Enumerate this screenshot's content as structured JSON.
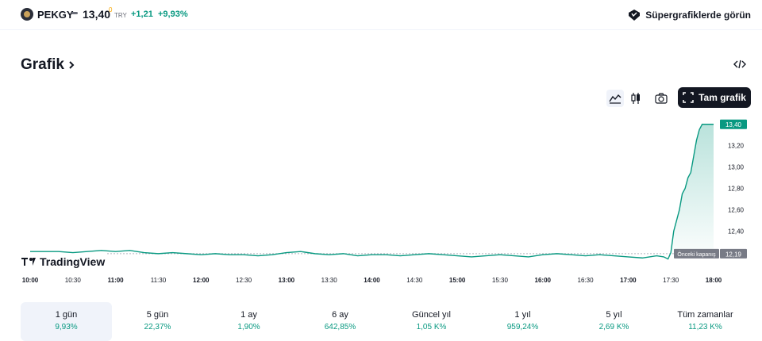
{
  "header": {
    "symbol": "PEKGY",
    "price": "13,40",
    "price_superscript": "0",
    "currency": "TRY",
    "change_abs": "+1,21",
    "change_pct": "+9,93%",
    "super_charts_label": "Süpergrafiklerde görün"
  },
  "section": {
    "title": "Grafik"
  },
  "toolbar": {
    "full_chart_label": "Tam grafik"
  },
  "colors": {
    "up": "#089981",
    "text": "#131722",
    "muted": "#6a6d78",
    "accent": "#f7a600"
  },
  "watermark": "TradingView",
  "chart_data": {
    "type": "area",
    "x_ticks": [
      "10:00",
      "10:30",
      "11:00",
      "11:30",
      "12:00",
      "12:30",
      "13:00",
      "13:30",
      "14:00",
      "14:30",
      "15:00",
      "15:30",
      "16:00",
      "16:30",
      "17:00",
      "17:30",
      "18:00"
    ],
    "y_ticks": [
      "13,40",
      "13,20",
      "13,00",
      "12,80",
      "12,60",
      "12,40",
      "12,19"
    ],
    "ylim": [
      12.1,
      13.45
    ],
    "previous_close": 12.19,
    "previous_close_label": "Önceki kapanış",
    "last_price_label": "13,40",
    "series": [
      {
        "x": [
          "10:00",
          "10:10",
          "10:20",
          "10:30",
          "10:40",
          "10:50",
          "11:00",
          "11:10",
          "11:20",
          "11:30",
          "11:40",
          "11:50",
          "12:00",
          "12:10",
          "12:20",
          "12:30",
          "12:40",
          "12:50",
          "13:00",
          "13:10",
          "13:20",
          "13:30",
          "13:40",
          "13:50",
          "14:00",
          "14:10",
          "14:20",
          "14:30",
          "14:40",
          "14:50",
          "15:00",
          "15:10",
          "15:20",
          "15:30",
          "15:40",
          "15:50",
          "16:00",
          "16:10",
          "16:20",
          "16:30",
          "16:40",
          "16:50",
          "17:00",
          "17:10",
          "17:20",
          "17:25",
          "17:28",
          "17:30",
          "17:32",
          "17:34",
          "17:36",
          "17:38",
          "17:40",
          "17:42",
          "17:44",
          "17:46",
          "17:48",
          "17:50",
          "17:52",
          "17:55",
          "18:00"
        ],
        "values": [
          12.21,
          12.21,
          12.21,
          12.2,
          12.21,
          12.22,
          12.21,
          12.22,
          12.2,
          12.19,
          12.2,
          12.19,
          12.18,
          12.19,
          12.18,
          12.18,
          12.17,
          12.18,
          12.2,
          12.21,
          12.19,
          12.18,
          12.19,
          12.17,
          12.18,
          12.18,
          12.17,
          12.18,
          12.19,
          12.18,
          12.17,
          12.16,
          12.17,
          12.18,
          12.17,
          12.16,
          12.18,
          12.19,
          12.18,
          12.17,
          12.18,
          12.17,
          12.16,
          12.15,
          12.17,
          12.16,
          12.14,
          12.2,
          12.4,
          12.5,
          12.6,
          12.75,
          12.8,
          12.9,
          12.95,
          13.1,
          13.25,
          13.35,
          13.4,
          13.4,
          13.4
        ]
      }
    ]
  },
  "periods": [
    {
      "label": "1 gün",
      "value": "9,93%"
    },
    {
      "label": "5 gün",
      "value": "22,37%"
    },
    {
      "label": "1 ay",
      "value": "1,90%"
    },
    {
      "label": "6 ay",
      "value": "642,85%"
    },
    {
      "label": "Güncel yıl",
      "value": "1,05 K%"
    },
    {
      "label": "1 yıl",
      "value": "959,24%"
    },
    {
      "label": "5 yıl",
      "value": "2,69 K%"
    },
    {
      "label": "Tüm zamanlar",
      "value": "11,23 K%"
    }
  ]
}
